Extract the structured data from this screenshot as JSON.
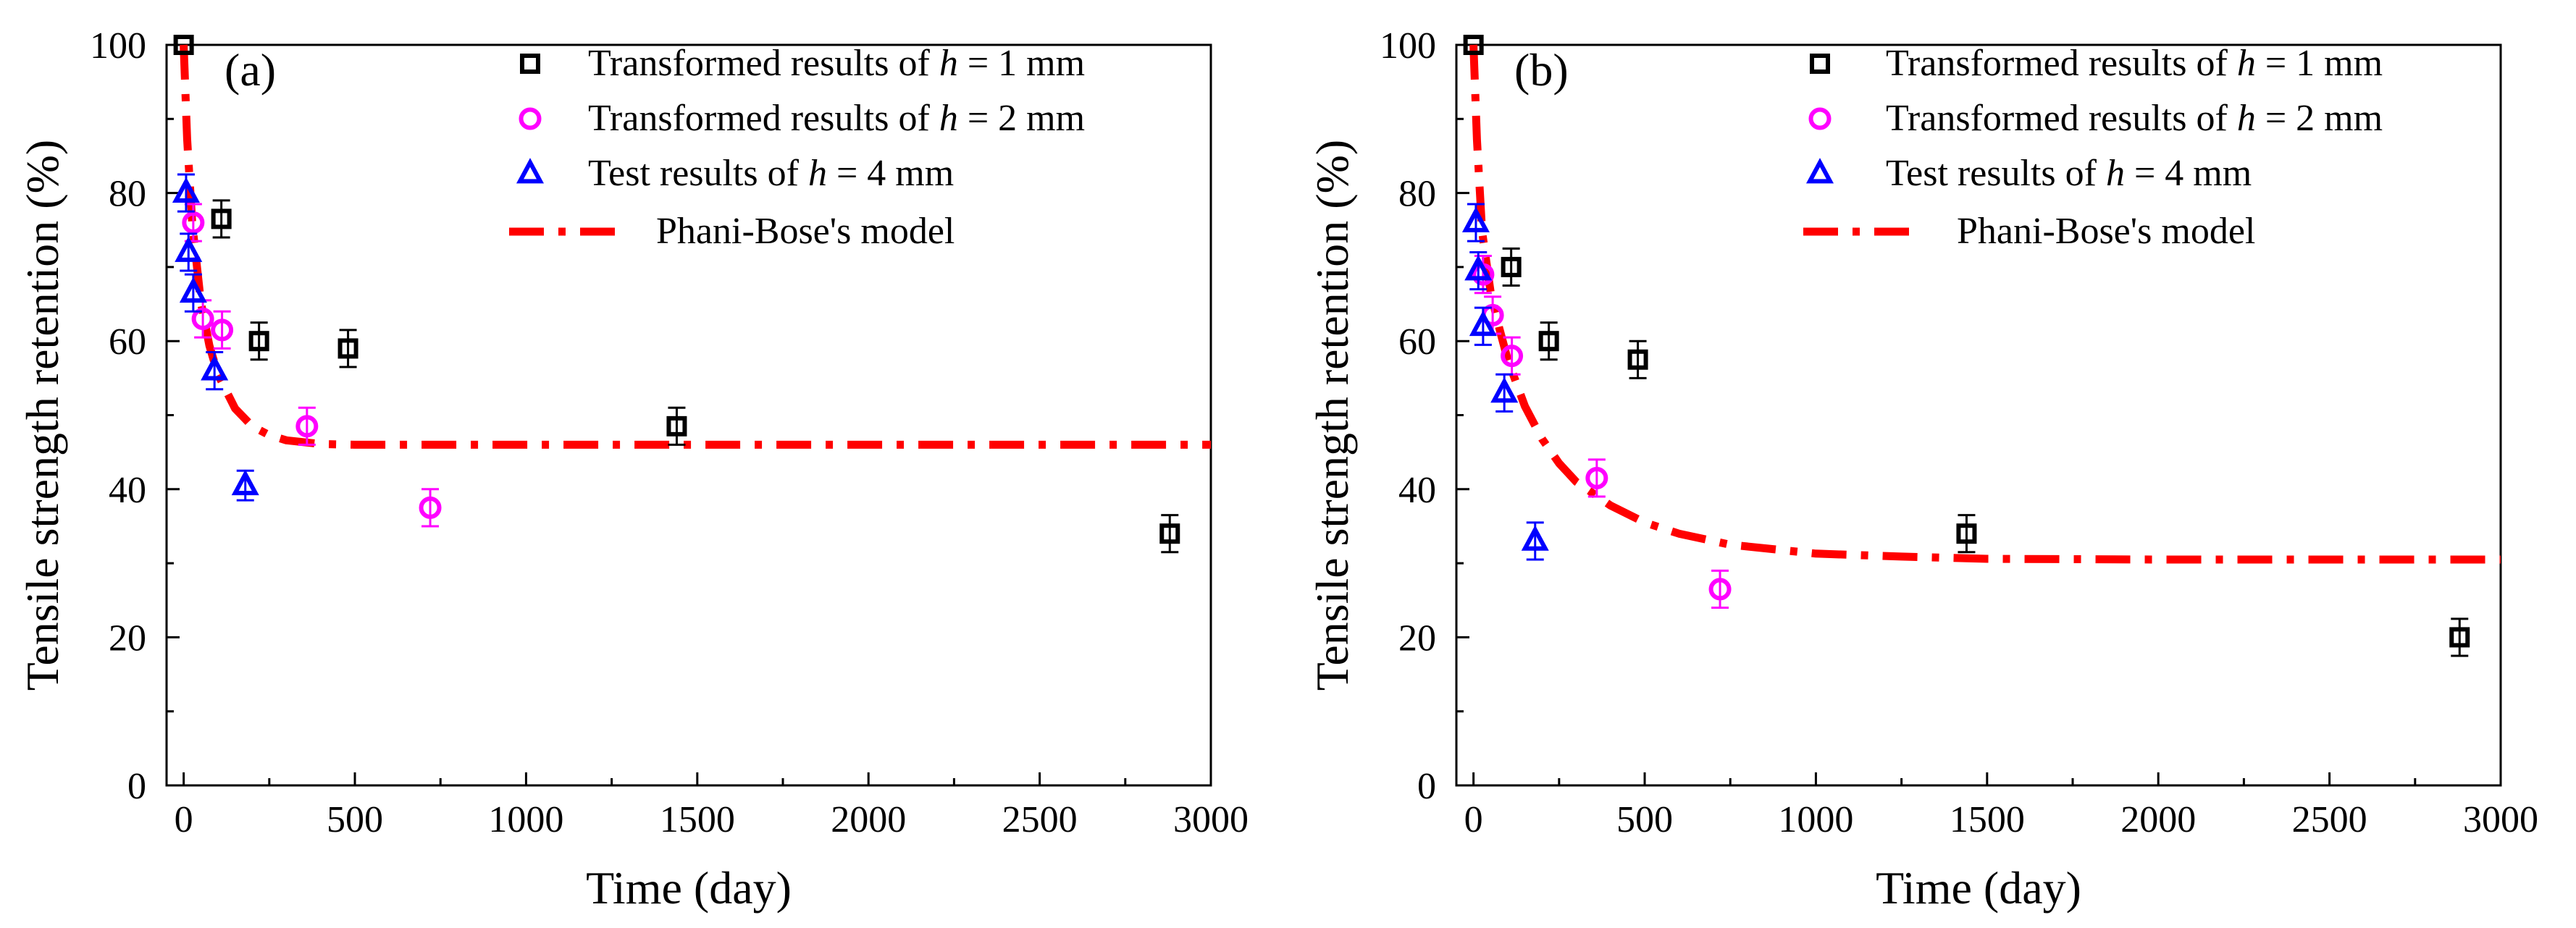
{
  "figure": {
    "colors": {
      "h1": "#000000",
      "h2": "#ff00ff",
      "h4": "#0000ff",
      "model": "#ff0000",
      "axis": "#000000"
    }
  },
  "chart_data": [
    {
      "type": "scatter",
      "panel_label": "(a)",
      "xlabel": "Time (day)",
      "ylabel": "Tensile strength retention (%)",
      "xlim": [
        -50,
        3000
      ],
      "ylim": [
        0,
        100
      ],
      "xticks": [
        0,
        500,
        1000,
        1500,
        2000,
        2500,
        3000
      ],
      "yticks": [
        0,
        20,
        40,
        60,
        80,
        100
      ],
      "legend_position": "top-right",
      "series": [
        {
          "key": "h1",
          "marker": "square",
          "name_prefix": "Transformed results of ",
          "name_var": "h",
          "name_suffix": " = 1 mm",
          "x": [
            0,
            110,
            220,
            480,
            1440,
            2880
          ],
          "y": [
            100,
            76.5,
            60,
            59,
            48.5,
            34
          ],
          "err": [
            0,
            2.5,
            2.5,
            2.5,
            2.5,
            2.5
          ]
        },
        {
          "key": "h2",
          "marker": "circle",
          "name_prefix": "Transformed results of ",
          "name_var": "h",
          "name_suffix": " = 2 mm",
          "x": [
            28,
            56,
            112,
            360,
            720
          ],
          "y": [
            76,
            63,
            61.5,
            48.5,
            37.5
          ],
          "err": [
            2.5,
            2.5,
            2.5,
            2.5,
            2.5
          ]
        },
        {
          "key": "h4",
          "marker": "triangle",
          "name_prefix": "Test results of ",
          "name_var": "h",
          "name_suffix": " = 4 mm",
          "x": [
            7,
            14,
            28,
            90,
            180
          ],
          "y": [
            80,
            72,
            66.5,
            56,
            40.5
          ],
          "err": [
            2.5,
            2.5,
            2.5,
            2.5,
            2
          ]
        },
        {
          "key": "model",
          "line": "dashdot",
          "name": "Phani-Bose's model",
          "x": [
            0,
            10,
            25,
            50,
            75,
            100,
            150,
            200,
            250,
            300,
            400,
            500,
            750,
            1000,
            1500,
            2000,
            2500,
            3000
          ],
          "y": [
            100,
            87.3,
            75.8,
            65.3,
            59.4,
            55.5,
            50.9,
            48.5,
            47.3,
            46.6,
            46.1,
            46.0,
            46.0,
            46.0,
            46.0,
            46.0,
            46.0,
            46.0
          ]
        }
      ]
    },
    {
      "type": "scatter",
      "panel_label": "(b)",
      "xlabel": "Time (day)",
      "ylabel": "Tensile strength retention (%)",
      "xlim": [
        -50,
        3000
      ],
      "ylim": [
        0,
        100
      ],
      "xticks": [
        0,
        500,
        1000,
        1500,
        2000,
        2500,
        3000
      ],
      "yticks": [
        0,
        20,
        40,
        60,
        80,
        100
      ],
      "legend_position": "top-right",
      "series": [
        {
          "key": "h1",
          "marker": "square",
          "name_prefix": "Transformed results of ",
          "name_var": "h",
          "name_suffix": " = 1 mm",
          "x": [
            0,
            110,
            220,
            480,
            1440,
            2880
          ],
          "y": [
            100,
            70,
            60,
            57.5,
            34,
            20
          ],
          "err": [
            0,
            2.5,
            2.5,
            2.5,
            2.5,
            2.5
          ]
        },
        {
          "key": "h2",
          "marker": "circle",
          "name_prefix": "Transformed results of ",
          "name_var": "h",
          "name_suffix": " = 2 mm",
          "x": [
            28,
            56,
            112,
            360,
            720
          ],
          "y": [
            69,
            63.5,
            58,
            41.5,
            26.5
          ],
          "err": [
            2.5,
            2.5,
            2.5,
            2.5,
            2.5
          ]
        },
        {
          "key": "h4",
          "marker": "triangle",
          "name_prefix": "Test results of ",
          "name_var": "h",
          "name_suffix": " = 4 mm",
          "x": [
            7,
            14,
            28,
            90,
            180
          ],
          "y": [
            76,
            69.5,
            62,
            53,
            33
          ],
          "err": [
            2.5,
            2.5,
            2.5,
            2.5,
            2.5
          ]
        },
        {
          "key": "model",
          "line": "dashdot",
          "name": "Phani-Bose's model",
          "x": [
            0,
            10,
            25,
            50,
            75,
            100,
            150,
            200,
            250,
            300,
            400,
            500,
            600,
            750,
            1000,
            1250,
            1500,
            2000,
            2500,
            3000
          ],
          "y": [
            100,
            87.2,
            74.8,
            66.6,
            61.8,
            57.5,
            51.2,
            46.8,
            43.5,
            41.0,
            37.8,
            35.5,
            34.0,
            32.5,
            31.3,
            30.9,
            30.6,
            30.5,
            30.5,
            30.5
          ]
        }
      ]
    }
  ]
}
